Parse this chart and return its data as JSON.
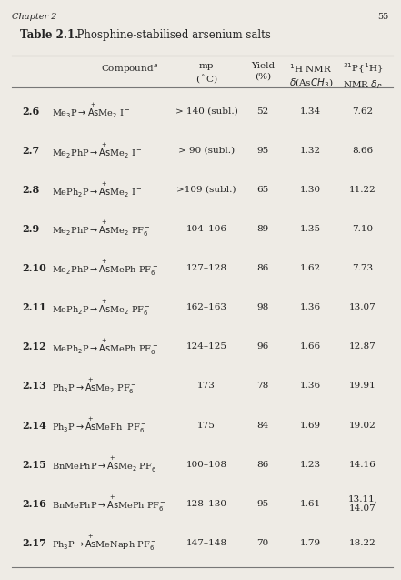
{
  "title_bold": "Table 2.1.",
  "title_rest": "  Phosphine-stabilised arsenium salts",
  "header_chapter": "Chapter 2",
  "header_page": "55",
  "bg_color": "#eeebe5",
  "text_color": "#222222",
  "line_color": "#777777",
  "col_x": {
    "num": 0.055,
    "compound": 0.13,
    "mp": 0.515,
    "yield": 0.655,
    "hnmr": 0.775,
    "pnmr": 0.905
  },
  "rows": [
    {
      "num": "2.6",
      "mp": "> 140 (subl.)",
      "yield": "52",
      "hnmr": "1.34",
      "pnmr": "7.62"
    },
    {
      "num": "2.7",
      "mp": "> 90 (subl.)",
      "yield": "95",
      "hnmr": "1.32",
      "pnmr": "8.66"
    },
    {
      "num": "2.8",
      "mp": ">109 (subl.)",
      "yield": "65",
      "hnmr": "1.30",
      "pnmr": "11.22"
    },
    {
      "num": "2.9",
      "mp": "104–106",
      "yield": "89",
      "hnmr": "1.35",
      "pnmr": "7.10"
    },
    {
      "num": "2.10",
      "mp": "127–128",
      "yield": "86",
      "hnmr": "1.62",
      "pnmr": "7.73"
    },
    {
      "num": "2.11",
      "mp": "162–163",
      "yield": "98",
      "hnmr": "1.36",
      "pnmr": "13.07"
    },
    {
      "num": "2.12",
      "mp": "124–125",
      "yield": "96",
      "hnmr": "1.66",
      "pnmr": "12.87"
    },
    {
      "num": "2.13",
      "mp": "173",
      "yield": "78",
      "hnmr": "1.36",
      "pnmr": "19.91"
    },
    {
      "num": "2.14",
      "mp": "175",
      "yield": "84",
      "hnmr": "1.69",
      "pnmr": "19.02"
    },
    {
      "num": "2.15",
      "mp": "100–108",
      "yield": "86",
      "hnmr": "1.23",
      "pnmr": "14.16"
    },
    {
      "num": "2.16",
      "mp": "128–130",
      "yield": "95",
      "hnmr": "1.61",
      "pnmr": "13.11,\n14.07"
    },
    {
      "num": "2.17",
      "mp": "147–148",
      "yield": "70",
      "hnmr": "1.79",
      "pnmr": "18.22"
    }
  ],
  "compounds": [
    "Me$_3$P$\\rightarrow$$\\overset{+}{\\mathrm{As}}$Me$_2$ I$^-$",
    "Me$_2$PhP$\\rightarrow$$\\overset{+}{\\mathrm{As}}$Me$_2$ I$^-$",
    "MePh$_2$P$\\rightarrow$$\\overset{+}{\\mathrm{As}}$Me$_2$ I$^-$",
    "Me$_2$PhP$\\rightarrow$$\\overset{+}{\\mathrm{As}}$Me$_2$ PF$_6^-$",
    "Me$_2$PhP$\\rightarrow$$\\overset{+}{\\mathrm{As}}$MePh PF$_6^-$",
    "MePh$_2$P$\\rightarrow$$\\overset{+}{\\mathrm{As}}$Me$_2$ PF$_6^-$",
    "MePh$_2$P$\\rightarrow$$\\overset{+}{\\mathrm{As}}$MePh PF$_6^-$",
    "Ph$_3$P$\\rightarrow$$\\overset{+}{\\mathrm{As}}$Me$_2$ PF$_6^-$",
    "Ph$_3$P$\\rightarrow$$\\overset{+}{\\mathrm{As}}$MePh  PF$_6^-$",
    "BnMePhP$\\rightarrow$$\\overset{+}{\\mathrm{As}}$Me$_2$ PF$_6^-$",
    "BnMePhP$\\rightarrow$$\\overset{+}{\\mathrm{As}}$MePh PF$_6^-$",
    "Ph$_3$P$\\rightarrow$$\\overset{+}{\\mathrm{As}}$MeNaph PF$_6^-$"
  ]
}
